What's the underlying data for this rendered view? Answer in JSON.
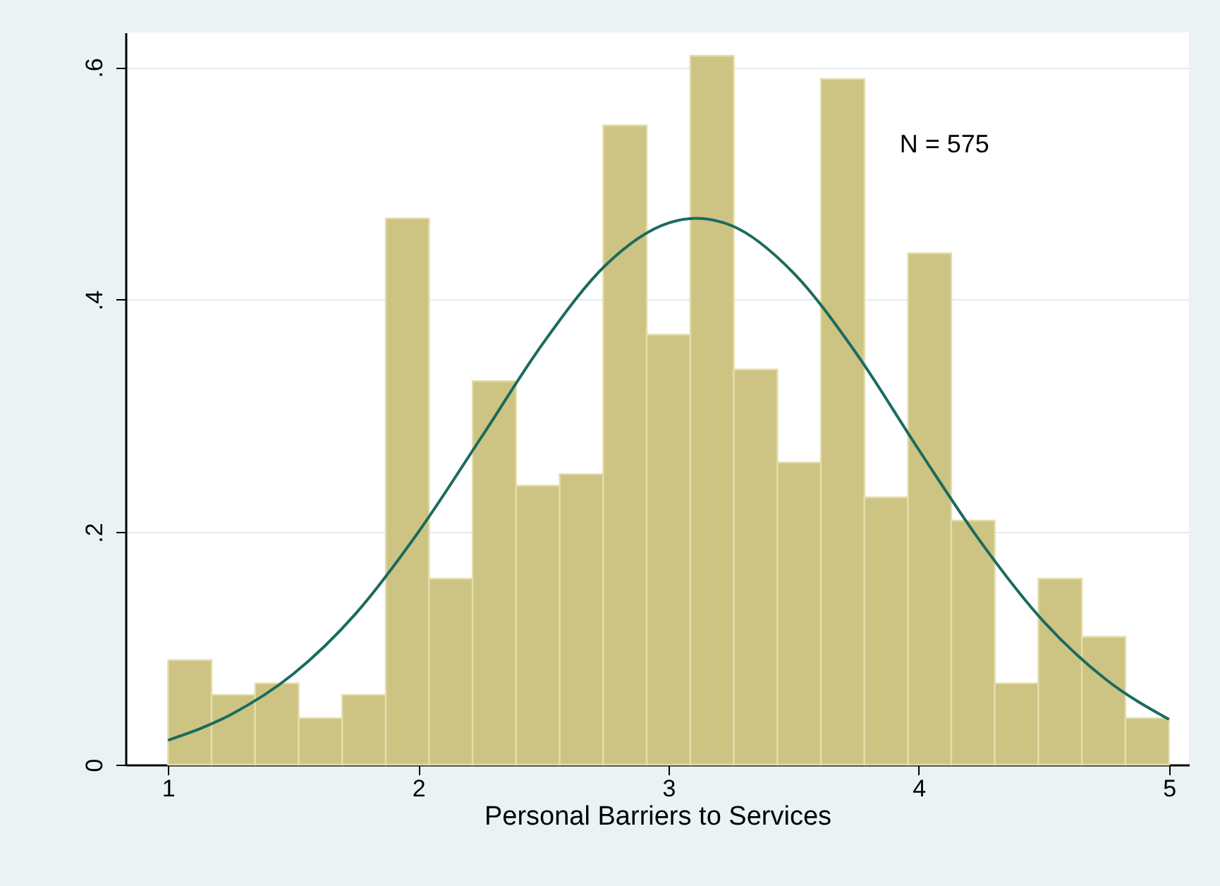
{
  "chart_data": {
    "type": "histogram",
    "xlabel": "Personal Barriers to Services",
    "bins": [
      1,
      1.174,
      1.348,
      1.522,
      1.696,
      1.87,
      2.043,
      2.217,
      2.391,
      2.565,
      2.739,
      2.913,
      3.087,
      3.261,
      3.435,
      3.609,
      3.783,
      3.957,
      4.13,
      4.304,
      4.478,
      4.652,
      4.826,
      5
    ],
    "values": [
      0.09,
      0.06,
      0.07,
      0.04,
      0.06,
      0.47,
      0.16,
      0.33,
      0.24,
      0.25,
      0.55,
      0.37,
      0.61,
      0.34,
      0.26,
      0.59,
      0.23,
      0.44,
      0.21,
      0.07,
      0.16,
      0.11,
      0.04
    ],
    "color": "#cdc483",
    "series": [
      {
        "type": "line",
        "color": "#1a6b5e",
        "x": [
          1,
          1.25,
          1.5,
          1.75,
          2,
          2.25,
          2.5,
          2.75,
          3,
          3.11,
          3.25,
          3.5,
          3.75,
          4,
          4.25,
          4.5,
          4.75,
          5
        ],
        "values": [
          0.021,
          0.043,
          0.078,
          0.13,
          0.2,
          0.281,
          0.363,
          0.43,
          0.466,
          0.47,
          0.464,
          0.423,
          0.354,
          0.271,
          0.191,
          0.123,
          0.073,
          0.039
        ]
      }
    ],
    "xlim": [
      0.83,
      5.08
    ],
    "xticks": [
      1,
      2,
      3,
      4,
      5
    ],
    "ylim": [
      0,
      0.63
    ],
    "yticks": [
      0,
      {
        "value": 0.2,
        "label": ".2"
      },
      {
        "value": 0.4,
        "label": ".4"
      },
      {
        "value": 0.6,
        "label": ".6"
      }
    ],
    "grid": "y",
    "annotations": [
      "N = 575"
    ]
  }
}
